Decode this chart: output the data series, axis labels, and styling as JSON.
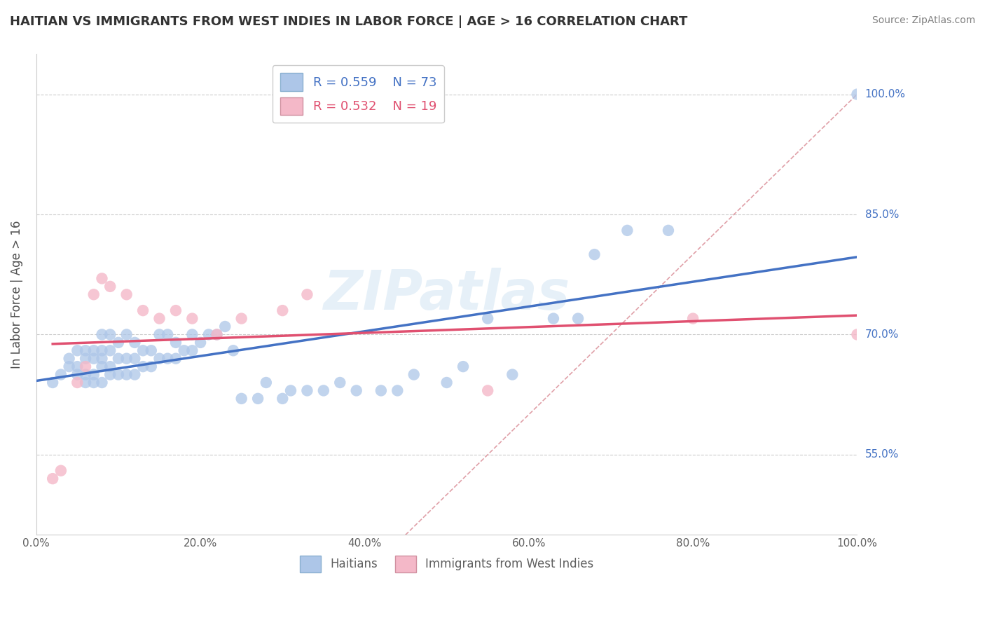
{
  "title": "HAITIAN VS IMMIGRANTS FROM WEST INDIES IN LABOR FORCE | AGE > 16 CORRELATION CHART",
  "source_text": "Source: ZipAtlas.com",
  "ylabel": "In Labor Force | Age > 16",
  "watermark": "ZIPatlas",
  "legend1_r": "R = 0.559",
  "legend1_n": "N = 73",
  "legend2_r": "R = 0.532",
  "legend2_n": "N = 19",
  "legend_bottom1": "Haitians",
  "legend_bottom2": "Immigrants from West Indies",
  "xlim": [
    0.0,
    1.0
  ],
  "ylim": [
    0.45,
    1.05
  ],
  "ytick_labels": [
    "55.0%",
    "70.0%",
    "85.0%",
    "100.0%"
  ],
  "ytick_positions": [
    0.55,
    0.7,
    0.85,
    1.0
  ],
  "xtick_labels": [
    "0.0%",
    "20.0%",
    "40.0%",
    "60.0%",
    "80.0%",
    "100.0%"
  ],
  "xtick_positions": [
    0.0,
    0.2,
    0.4,
    0.6,
    0.8,
    1.0
  ],
  "color_blue": "#adc6e8",
  "color_pink": "#f4b8c8",
  "line_blue": "#4472c4",
  "line_pink": "#e05070",
  "line_diagonal": "#e0a0a8",
  "grid_color": "#cccccc",
  "background_color": "#ffffff",
  "title_color": "#333333",
  "source_color": "#808080",
  "haitian_x": [
    0.02,
    0.03,
    0.04,
    0.04,
    0.05,
    0.05,
    0.05,
    0.06,
    0.06,
    0.06,
    0.06,
    0.07,
    0.07,
    0.07,
    0.07,
    0.08,
    0.08,
    0.08,
    0.08,
    0.08,
    0.09,
    0.09,
    0.09,
    0.09,
    0.1,
    0.1,
    0.1,
    0.11,
    0.11,
    0.11,
    0.12,
    0.12,
    0.12,
    0.13,
    0.13,
    0.14,
    0.14,
    0.15,
    0.15,
    0.16,
    0.16,
    0.17,
    0.17,
    0.18,
    0.19,
    0.19,
    0.2,
    0.21,
    0.22,
    0.23,
    0.24,
    0.25,
    0.27,
    0.28,
    0.3,
    0.31,
    0.33,
    0.35,
    0.37,
    0.39,
    0.42,
    0.44,
    0.46,
    0.5,
    0.52,
    0.55,
    0.58,
    0.63,
    0.66,
    0.68,
    0.72,
    0.77,
    1.0
  ],
  "haitian_y": [
    0.64,
    0.65,
    0.66,
    0.67,
    0.65,
    0.66,
    0.68,
    0.64,
    0.65,
    0.67,
    0.68,
    0.64,
    0.65,
    0.67,
    0.68,
    0.64,
    0.66,
    0.67,
    0.68,
    0.7,
    0.65,
    0.66,
    0.68,
    0.7,
    0.65,
    0.67,
    0.69,
    0.65,
    0.67,
    0.7,
    0.65,
    0.67,
    0.69,
    0.66,
    0.68,
    0.66,
    0.68,
    0.67,
    0.7,
    0.67,
    0.7,
    0.67,
    0.69,
    0.68,
    0.68,
    0.7,
    0.69,
    0.7,
    0.7,
    0.71,
    0.68,
    0.62,
    0.62,
    0.64,
    0.62,
    0.63,
    0.63,
    0.63,
    0.64,
    0.63,
    0.63,
    0.63,
    0.65,
    0.64,
    0.66,
    0.72,
    0.65,
    0.72,
    0.72,
    0.8,
    0.83,
    0.83,
    1.0
  ],
  "westindies_x": [
    0.02,
    0.03,
    0.05,
    0.06,
    0.07,
    0.08,
    0.09,
    0.11,
    0.13,
    0.15,
    0.17,
    0.19,
    0.22,
    0.25,
    0.3,
    0.33,
    0.55,
    0.8,
    1.0
  ],
  "westindies_y": [
    0.52,
    0.53,
    0.64,
    0.66,
    0.75,
    0.77,
    0.76,
    0.75,
    0.73,
    0.72,
    0.73,
    0.72,
    0.7,
    0.72,
    0.73,
    0.75,
    0.63,
    0.72,
    0.7
  ]
}
